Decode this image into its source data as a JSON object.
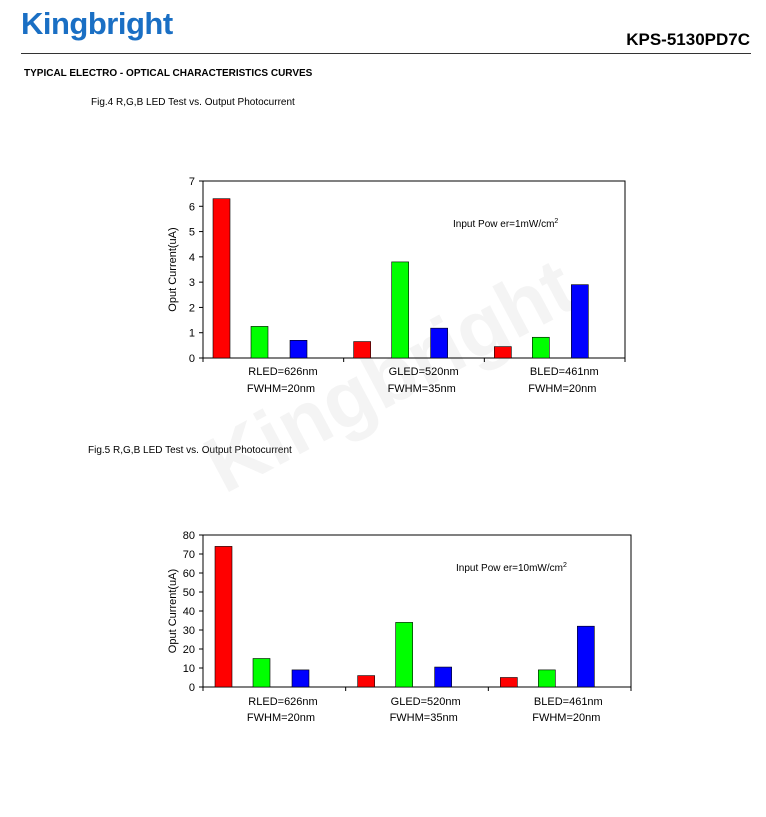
{
  "header": {
    "logo_text": "Kingbright",
    "part_number": "KPS-5130PD7C",
    "section_title": "TYPICAL ELECTRO - OPTICAL CHARACTERISTICS CURVES"
  },
  "watermark": "Kingbright",
  "colors": {
    "red": "#ff0000",
    "green": "#00ff00",
    "blue": "#0000ff",
    "logo": "#1a6fc4"
  },
  "figures": [
    {
      "caption": "Fig.4 R,G,B LED Test vs. Output Photocurrent"
    },
    {
      "caption": "Fig.5 R,G,B LED Test vs. Output Photocurrent"
    }
  ],
  "chart_data": [
    {
      "type": "bar",
      "ylabel": "Oput Current(uA)",
      "ylim": [
        0,
        7
      ],
      "yticks": [
        "0",
        "1",
        "2",
        "3",
        "4",
        "5",
        "6",
        "7"
      ],
      "annotation": "Input Pow er=1mW/cm",
      "annotation_sup": "2",
      "groups": [
        {
          "label1": "RLED=626nm",
          "label2": "FWHM=20nm"
        },
        {
          "label1": "GLED=520nm",
          "label2": "FWHM=35nm"
        },
        {
          "label1": "BLED=461nm",
          "label2": "FWHM=20nm"
        }
      ],
      "series": [
        {
          "color": "#ff0000",
          "values": [
            6.3,
            0.65,
            0.45
          ]
        },
        {
          "color": "#00ff00",
          "values": [
            1.25,
            3.8,
            0.82
          ]
        },
        {
          "color": "#0000ff",
          "values": [
            0.7,
            1.18,
            2.9
          ]
        }
      ],
      "grid": false
    },
    {
      "type": "bar",
      "ylabel": "Oput Current(uA)",
      "ylim": [
        0,
        80
      ],
      "yticks": [
        "0",
        "10",
        "20",
        "30",
        "40",
        "50",
        "60",
        "70",
        "80"
      ],
      "annotation": "Input Pow er=10mW/cm",
      "annotation_sup": "2",
      "groups": [
        {
          "label1": "RLED=626nm",
          "label2": "FWHM=20nm"
        },
        {
          "label1": "GLED=520nm",
          "label2": "FWHM=35nm"
        },
        {
          "label1": "BLED=461nm",
          "label2": "FWHM=20nm"
        }
      ],
      "series": [
        {
          "color": "#ff0000",
          "values": [
            74,
            6,
            5
          ]
        },
        {
          "color": "#00ff00",
          "values": [
            15,
            34,
            9
          ]
        },
        {
          "color": "#0000ff",
          "values": [
            9,
            10.5,
            32
          ]
        }
      ],
      "grid": false
    }
  ]
}
